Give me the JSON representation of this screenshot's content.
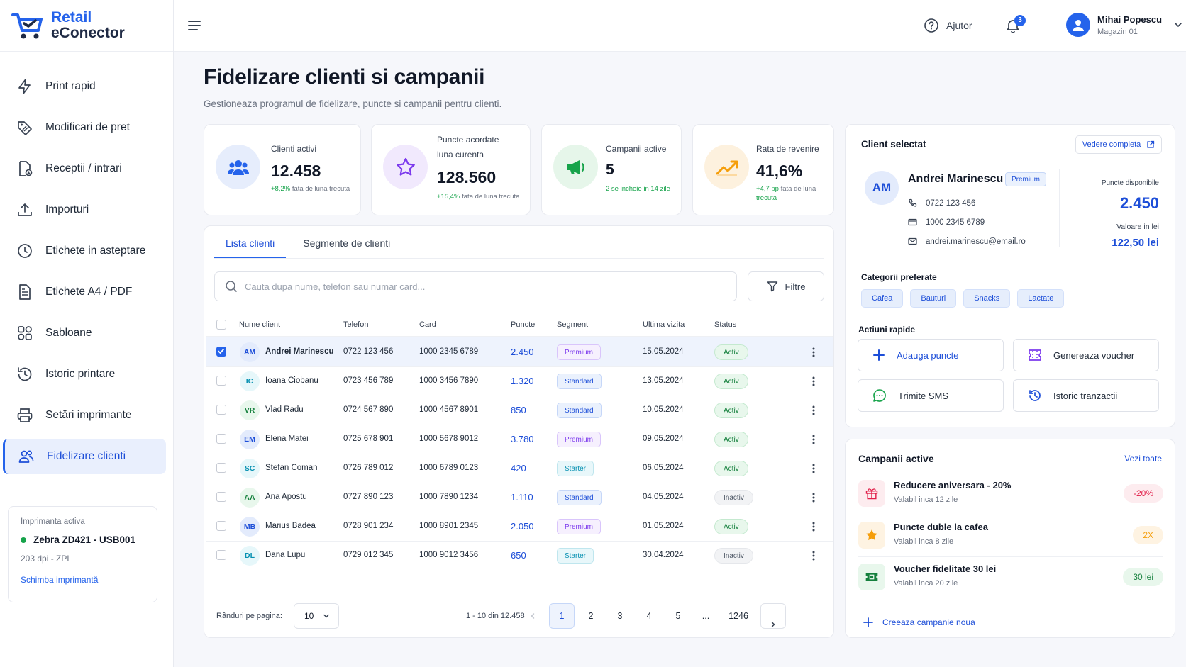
{
  "app": {
    "logo_line1": "Retail",
    "logo_line2": "eConector"
  },
  "sidebar": {
    "items": [
      {
        "label": "Print rapid",
        "icon": "bolt-icon"
      },
      {
        "label": "Modificari de pret",
        "icon": "price-tag-icon"
      },
      {
        "label": "Receptii / intrari",
        "icon": "document-receive-icon"
      },
      {
        "label": "Importuri",
        "icon": "upload-icon"
      },
      {
        "label": "Etichete in asteptare",
        "icon": "clock-icon"
      },
      {
        "label": "Etichete A4 / PDF",
        "icon": "file-icon"
      },
      {
        "label": "Sabloane",
        "icon": "grid-icon"
      },
      {
        "label": "Istoric printare",
        "icon": "history-icon"
      },
      {
        "label": "Setări imprimante",
        "icon": "printer-icon"
      },
      {
        "label": "Fidelizare clienti",
        "icon": "users-icon",
        "active": true
      }
    ],
    "printer": {
      "title": "Imprimanta activa",
      "name": "Zebra ZD421 - USB001",
      "spec": "203 dpi - ZPL",
      "link": "Schimba imprimantă"
    }
  },
  "topbar": {
    "help": "Ajutor",
    "notifications": "3",
    "user_name": "Mihai Popescu",
    "user_store": "Magazin 01"
  },
  "page": {
    "title": "Fidelizare clienti si campanii",
    "subtitle": "Gestioneaza programul de fidelizare, puncte si campanii pentru clienti."
  },
  "stats": [
    {
      "label1": "Clienti activi",
      "label2": "",
      "value": "12.458",
      "change": "+8,2%",
      "change_rest": " fata de luna trecuta",
      "icon": "users-icon",
      "color": "#2563eb"
    },
    {
      "label1": "Puncte acordate",
      "label2": "luna curenta",
      "value": "128.560",
      "change": "+15,4%",
      "change_rest": " fata de luna trecuta",
      "icon": "star-icon",
      "color": "#7c3aed"
    },
    {
      "label1": "Campanii active",
      "label2": "",
      "value": "5",
      "change": "2 se incheie in 14 zile",
      "change_rest": "",
      "icon": "megaphone-icon",
      "color": "#16a34a"
    },
    {
      "label1": "Rata de revenire",
      "label2": "",
      "value": "41,6%",
      "change": "+4,7 pp",
      "change_rest": " fata de luna",
      "change_line2": "trecuta",
      "icon": "trend-up-icon",
      "color": "#f59e0b"
    }
  ],
  "tabs": [
    {
      "label": "Lista clienti",
      "active": true
    },
    {
      "label": "Segmente de clienti"
    }
  ],
  "search": {
    "placeholder": "Cauta dupa nume, telefon sau numar card...",
    "value": ""
  },
  "filter_label": "Filtre",
  "table": {
    "headers": {
      "name": "Nume client",
      "phone": "Telefon",
      "card": "Card",
      "points": "Puncte",
      "segment": "Segment",
      "last": "Ultima vizita",
      "status": "Status"
    },
    "rows": [
      {
        "initials": "AM",
        "name": "Andrei Marinescu",
        "phone": "0722 123 456",
        "card": "1000 2345 6789",
        "points": "2.450",
        "segment": "Premium",
        "last": "15.05.2024",
        "status": "Activ",
        "selected": true,
        "av_bg": "#e3ebfc",
        "av_fg": "#1d4ed8"
      },
      {
        "initials": "IC",
        "name": "Ioana Ciobanu",
        "phone": "0723 456 789",
        "card": "1000 3456 7890",
        "points": "1.320",
        "segment": "Standard",
        "last": "13.05.2024",
        "status": "Activ",
        "av_bg": "#e6f7fa",
        "av_fg": "#0891b2"
      },
      {
        "initials": "VR",
        "name": "Vlad Radu",
        "phone": "0724 567 890",
        "card": "1000 4567 8901",
        "points": "850",
        "segment": "Standard",
        "last": "10.05.2024",
        "status": "Activ",
        "av_bg": "#e8f7ec",
        "av_fg": "#15803d"
      },
      {
        "initials": "EM",
        "name": "Elena Matei",
        "phone": "0725 678 901",
        "card": "1000 5678 9012",
        "points": "3.780",
        "segment": "Premium",
        "last": "09.05.2024",
        "status": "Activ",
        "av_bg": "#e3ebfc",
        "av_fg": "#1d4ed8"
      },
      {
        "initials": "SC",
        "name": "Stefan Coman",
        "phone": "0726 789 012",
        "card": "1000 6789 0123",
        "points": "420",
        "segment": "Starter",
        "last": "06.05.2024",
        "status": "Activ",
        "av_bg": "#e6f7fa",
        "av_fg": "#0891b2"
      },
      {
        "initials": "AA",
        "name": "Ana Apostu",
        "phone": "0727 890 123",
        "card": "1000 7890 1234",
        "points": "1.110",
        "segment": "Standard",
        "last": "04.05.2024",
        "status": "Inactiv",
        "av_bg": "#e8f7ec",
        "av_fg": "#15803d"
      },
      {
        "initials": "MB",
        "name": "Marius Badea",
        "phone": "0728 901 234",
        "card": "1000 8901 2345",
        "points": "2.050",
        "segment": "Premium",
        "last": "01.05.2024",
        "status": "Activ",
        "av_bg": "#e3ebfc",
        "av_fg": "#1d4ed8"
      },
      {
        "initials": "DL",
        "name": "Dana Lupu",
        "phone": "0729 012 345",
        "card": "1000 9012 3456",
        "points": "650",
        "segment": "Starter",
        "last": "30.04.2024",
        "status": "Inactiv",
        "av_bg": "#e6f7fa",
        "av_fg": "#0891b2"
      }
    ],
    "footer": {
      "rows_label": "Rânduri pe pagina:",
      "rows_value": "10",
      "range": "1 - 10 din 12.458",
      "pages": [
        "1",
        "2",
        "3",
        "4",
        "5",
        "...",
        "1246"
      ]
    }
  },
  "client": {
    "title": "Client selectat",
    "full_view": "Vedere completa",
    "initials": "AM",
    "name": "Andrei Marinescu",
    "badge": "Premium",
    "phone": "0722 123 456",
    "card": "1000 2345 6789",
    "email": "andrei.marinescu@email.ro",
    "points_label": "Puncte disponibile",
    "points": "2.450",
    "value_label": "Valoare in lei",
    "value": "122,50 lei",
    "categories_title": "Categorii preferate",
    "categories": [
      "Cafea",
      "Bauturi",
      "Snacks",
      "Lactate"
    ],
    "actions_title": "Actiuni rapide",
    "actions": [
      "Adauga puncte",
      "Genereaza voucher",
      "Trimite SMS",
      "Istoric tranzactii"
    ]
  },
  "campaigns": {
    "title": "Campanii active",
    "see_all": "Vezi toate",
    "items": [
      {
        "name": "Reducere aniversara - 20%",
        "sub": "Valabil inca 12 zile",
        "badge": "-20%",
        "icon": "gift-icon",
        "bg": "#fdecef",
        "fg": "#e11d48"
      },
      {
        "name": "Puncte duble la cafea",
        "sub": "Valabil inca 8 zile",
        "badge": "2X",
        "icon": "star-icon",
        "bg": "#fef3e2",
        "fg": "#f59e0b"
      },
      {
        "name": "Voucher fidelitate 30 lei",
        "sub": "Valabil inca 20 zile",
        "badge": "30 lei",
        "icon": "ticket-icon",
        "bg": "#e8f7ec",
        "fg": "#15803d"
      }
    ],
    "new_label": "Creeaza campanie noua"
  }
}
